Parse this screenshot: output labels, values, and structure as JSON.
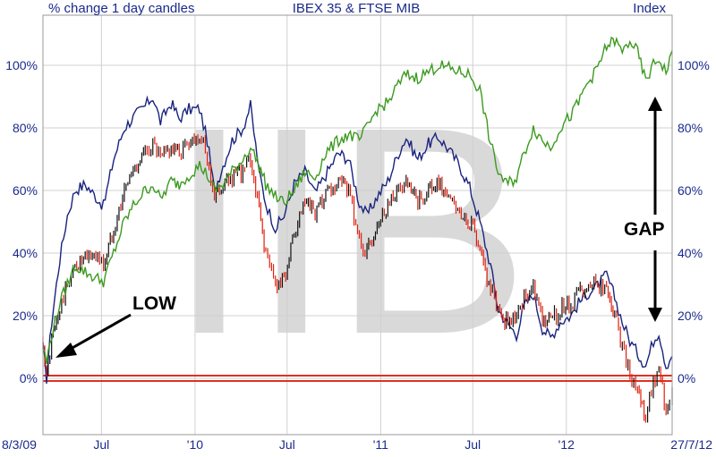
{
  "header": {
    "left": "% change  1 day candles",
    "center": "IBEX 35  & FTSE MIB",
    "right": "Index"
  },
  "watermark": "IIB",
  "annotations": {
    "low": "LOW",
    "gap": "GAP"
  },
  "colors": {
    "ibex": "#1a237e",
    "mib_up": "#111111",
    "mib_down": "#dd2211",
    "green": "#3c9a1f",
    "zero_band": "#e03020",
    "grid": "#d0d0d0",
    "text": "#1a2a8c"
  },
  "chart_data": {
    "type": "line",
    "title": "IBEX 35  & FTSE MIB",
    "ylabel": "% change",
    "ylim": [
      -18,
      116
    ],
    "y_ticks": [
      0,
      20,
      40,
      60,
      80,
      100
    ],
    "y_tick_labels": [
      "0%",
      "20%",
      "40%",
      "60%",
      "80%",
      "100%"
    ],
    "x_tick_labels": [
      "8/3/09",
      "Jul",
      "'10",
      "Jul",
      "'11",
      "Jul",
      "'12",
      "27/7/12"
    ],
    "x_tick_dates": [
      "2009-03-08",
      "2009-07-01",
      "2010-01-01",
      "2010-07-01",
      "2011-01-01",
      "2011-07-01",
      "2012-01-01",
      "2012-07-27"
    ],
    "grid": true,
    "series": [
      {
        "color": "#1a237e",
        "style": "line",
        "points": [
          [
            "2009-03-08",
            10
          ],
          [
            "2009-03-15",
            0
          ],
          [
            "2009-03-25",
            18
          ],
          [
            "2009-04-10",
            38
          ],
          [
            "2009-04-25",
            52
          ],
          [
            "2009-05-10",
            60
          ],
          [
            "2009-05-30",
            62
          ],
          [
            "2009-06-20",
            58
          ],
          [
            "2009-07-05",
            55
          ],
          [
            "2009-07-25",
            70
          ],
          [
            "2009-08-15",
            80
          ],
          [
            "2009-09-05",
            84
          ],
          [
            "2009-09-25",
            87
          ],
          [
            "2009-10-10",
            90
          ],
          [
            "2009-10-25",
            82
          ],
          [
            "2009-11-15",
            88
          ],
          [
            "2009-12-01",
            83
          ],
          [
            "2009-12-20",
            86
          ],
          [
            "2010-01-10",
            86
          ],
          [
            "2010-01-25",
            76
          ],
          [
            "2010-02-08",
            60
          ],
          [
            "2010-02-25",
            68
          ],
          [
            "2010-03-15",
            76
          ],
          [
            "2010-04-05",
            80
          ],
          [
            "2010-04-20",
            87
          ],
          [
            "2010-05-07",
            66
          ],
          [
            "2010-05-20",
            56
          ],
          [
            "2010-06-08",
            48
          ],
          [
            "2010-06-25",
            52
          ],
          [
            "2010-07-15",
            62
          ],
          [
            "2010-08-05",
            66
          ],
          [
            "2010-08-25",
            59
          ],
          [
            "2010-09-15",
            65
          ],
          [
            "2010-10-10",
            72
          ],
          [
            "2010-10-30",
            70
          ],
          [
            "2010-11-20",
            56
          ],
          [
            "2010-12-05",
            52
          ],
          [
            "2010-12-25",
            58
          ],
          [
            "2011-01-15",
            63
          ],
          [
            "2011-02-05",
            72
          ],
          [
            "2011-02-20",
            77
          ],
          [
            "2011-03-15",
            70
          ],
          [
            "2011-04-05",
            75
          ],
          [
            "2011-04-25",
            77
          ],
          [
            "2011-05-15",
            73
          ],
          [
            "2011-06-05",
            68
          ],
          [
            "2011-06-25",
            61
          ],
          [
            "2011-07-15",
            50
          ],
          [
            "2011-08-05",
            36
          ],
          [
            "2011-08-20",
            22
          ],
          [
            "2011-09-05",
            18
          ],
          [
            "2011-09-25",
            14
          ],
          [
            "2011-10-10",
            23
          ],
          [
            "2011-10-28",
            27
          ],
          [
            "2011-11-15",
            16
          ],
          [
            "2011-12-01",
            13
          ],
          [
            "2011-12-20",
            18
          ],
          [
            "2012-01-10",
            20
          ],
          [
            "2012-01-25",
            24
          ],
          [
            "2012-02-10",
            27
          ],
          [
            "2012-02-28",
            29
          ],
          [
            "2012-03-20",
            33
          ],
          [
            "2012-04-05",
            26
          ],
          [
            "2012-04-20",
            18
          ],
          [
            "2012-05-05",
            12
          ],
          [
            "2012-05-20",
            8
          ],
          [
            "2012-06-05",
            4
          ],
          [
            "2012-06-20",
            12
          ],
          [
            "2012-07-01",
            15
          ],
          [
            "2012-07-15",
            4
          ],
          [
            "2012-07-22",
            6
          ],
          [
            "2012-07-27",
            8
          ]
        ]
      },
      {
        "color": "#dd2211",
        "style": "candles",
        "down_color": "#dd2211",
        "up_color": "#111111",
        "points": [
          [
            "2009-03-08",
            12
          ],
          [
            "2009-03-15",
            0
          ],
          [
            "2009-03-25",
            12
          ],
          [
            "2009-04-10",
            22
          ],
          [
            "2009-04-25",
            30
          ],
          [
            "2009-05-10",
            36
          ],
          [
            "2009-05-30",
            38
          ],
          [
            "2009-06-20",
            40
          ],
          [
            "2009-07-05",
            36
          ],
          [
            "2009-07-25",
            48
          ],
          [
            "2009-08-15",
            60
          ],
          [
            "2009-09-05",
            68
          ],
          [
            "2009-09-25",
            72
          ],
          [
            "2009-10-10",
            75
          ],
          [
            "2009-10-25",
            70
          ],
          [
            "2009-11-15",
            74
          ],
          [
            "2009-12-01",
            72
          ],
          [
            "2009-12-20",
            76
          ],
          [
            "2010-01-10",
            78
          ],
          [
            "2010-01-25",
            70
          ],
          [
            "2010-02-08",
            58
          ],
          [
            "2010-02-25",
            62
          ],
          [
            "2010-03-15",
            64
          ],
          [
            "2010-04-05",
            66
          ],
          [
            "2010-04-20",
            70
          ],
          [
            "2010-05-07",
            54
          ],
          [
            "2010-05-20",
            40
          ],
          [
            "2010-06-08",
            30
          ],
          [
            "2010-06-25",
            32
          ],
          [
            "2010-07-15",
            45
          ],
          [
            "2010-08-05",
            56
          ],
          [
            "2010-08-25",
            52
          ],
          [
            "2010-09-15",
            58
          ],
          [
            "2010-10-10",
            62
          ],
          [
            "2010-10-30",
            60
          ],
          [
            "2010-11-20",
            44
          ],
          [
            "2010-12-05",
            40
          ],
          [
            "2010-12-25",
            50
          ],
          [
            "2011-01-15",
            56
          ],
          [
            "2011-02-05",
            60
          ],
          [
            "2011-02-20",
            62
          ],
          [
            "2011-03-15",
            56
          ],
          [
            "2011-04-05",
            60
          ],
          [
            "2011-04-25",
            62
          ],
          [
            "2011-05-15",
            58
          ],
          [
            "2011-06-05",
            52
          ],
          [
            "2011-06-25",
            50
          ],
          [
            "2011-07-15",
            42
          ],
          [
            "2011-08-05",
            28
          ],
          [
            "2011-08-20",
            22
          ],
          [
            "2011-09-05",
            18
          ],
          [
            "2011-09-25",
            20
          ],
          [
            "2011-10-10",
            26
          ],
          [
            "2011-10-28",
            30
          ],
          [
            "2011-11-15",
            20
          ],
          [
            "2011-12-01",
            18
          ],
          [
            "2011-12-20",
            22
          ],
          [
            "2012-01-10",
            24
          ],
          [
            "2012-01-25",
            28
          ],
          [
            "2012-02-10",
            30
          ],
          [
            "2012-02-28",
            30
          ],
          [
            "2012-03-20",
            28
          ],
          [
            "2012-04-05",
            20
          ],
          [
            "2012-04-20",
            10
          ],
          [
            "2012-05-05",
            0
          ],
          [
            "2012-05-20",
            -5
          ],
          [
            "2012-06-05",
            -12
          ],
          [
            "2012-06-20",
            -2
          ],
          [
            "2012-07-01",
            2
          ],
          [
            "2012-07-15",
            -10
          ],
          [
            "2012-07-22",
            -6
          ],
          [
            "2012-07-27",
            -4
          ]
        ]
      },
      {
        "color": "#3c9a1f",
        "style": "line",
        "points": [
          [
            "2009-03-08",
            10
          ],
          [
            "2009-03-15",
            5
          ],
          [
            "2009-03-25",
            14
          ],
          [
            "2009-04-10",
            24
          ],
          [
            "2009-04-25",
            30
          ],
          [
            "2009-05-10",
            36
          ],
          [
            "2009-05-30",
            34
          ],
          [
            "2009-06-20",
            32
          ],
          [
            "2009-07-05",
            31
          ],
          [
            "2009-07-25",
            40
          ],
          [
            "2009-08-15",
            50
          ],
          [
            "2009-09-05",
            56
          ],
          [
            "2009-09-25",
            60
          ],
          [
            "2009-10-10",
            62
          ],
          [
            "2009-10-25",
            57
          ],
          [
            "2009-11-15",
            63
          ],
          [
            "2009-12-01",
            62
          ],
          [
            "2009-12-20",
            65
          ],
          [
            "2010-01-10",
            68
          ],
          [
            "2010-01-25",
            65
          ],
          [
            "2010-02-08",
            60
          ],
          [
            "2010-02-25",
            62
          ],
          [
            "2010-03-15",
            66
          ],
          [
            "2010-04-05",
            70
          ],
          [
            "2010-04-20",
            74
          ],
          [
            "2010-05-07",
            68
          ],
          [
            "2010-05-20",
            62
          ],
          [
            "2010-06-08",
            58
          ],
          [
            "2010-06-25",
            56
          ],
          [
            "2010-07-15",
            60
          ],
          [
            "2010-08-05",
            66
          ],
          [
            "2010-08-25",
            64
          ],
          [
            "2010-09-15",
            72
          ],
          [
            "2010-10-10",
            76
          ],
          [
            "2010-10-30",
            78
          ],
          [
            "2010-11-20",
            76
          ],
          [
            "2010-12-05",
            80
          ],
          [
            "2010-12-25",
            86
          ],
          [
            "2011-01-15",
            88
          ],
          [
            "2011-02-05",
            94
          ],
          [
            "2011-02-20",
            97
          ],
          [
            "2011-03-15",
            96
          ],
          [
            "2011-04-05",
            98
          ],
          [
            "2011-04-25",
            100
          ],
          [
            "2011-05-15",
            99
          ],
          [
            "2011-06-05",
            98
          ],
          [
            "2011-06-25",
            97
          ],
          [
            "2011-07-15",
            92
          ],
          [
            "2011-08-05",
            75
          ],
          [
            "2011-08-20",
            66
          ],
          [
            "2011-09-05",
            62
          ],
          [
            "2011-09-25",
            64
          ],
          [
            "2011-10-10",
            72
          ],
          [
            "2011-10-28",
            80
          ],
          [
            "2011-11-15",
            76
          ],
          [
            "2011-12-01",
            74
          ],
          [
            "2011-12-20",
            80
          ],
          [
            "2012-01-10",
            84
          ],
          [
            "2012-01-25",
            88
          ],
          [
            "2012-02-10",
            94
          ],
          [
            "2012-02-28",
            98
          ],
          [
            "2012-03-20",
            106
          ],
          [
            "2012-04-05",
            108
          ],
          [
            "2012-04-20",
            104
          ],
          [
            "2012-05-05",
            108
          ],
          [
            "2012-05-20",
            104
          ],
          [
            "2012-06-05",
            95
          ],
          [
            "2012-06-20",
            100
          ],
          [
            "2012-07-01",
            102
          ],
          [
            "2012-07-15",
            98
          ],
          [
            "2012-07-22",
            101
          ],
          [
            "2012-07-27",
            104
          ]
        ]
      }
    ]
  }
}
